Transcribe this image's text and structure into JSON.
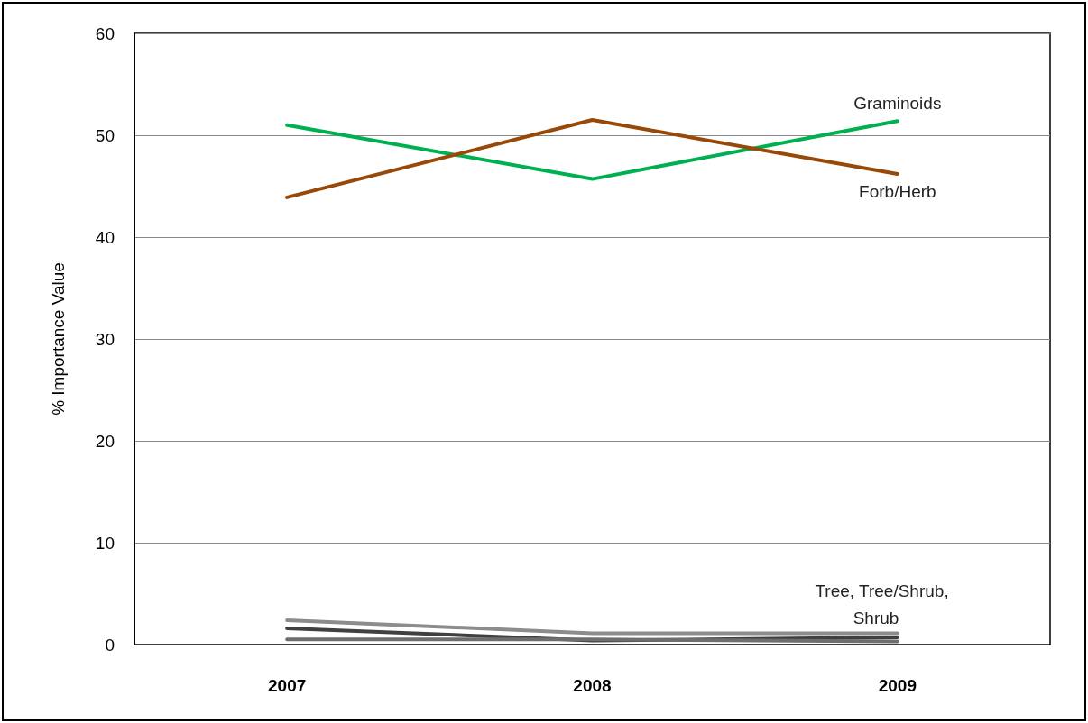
{
  "chart_data": {
    "type": "line",
    "ylabel": "% Importance Value",
    "categories": [
      "2007",
      "2008",
      "2009"
    ],
    "series": [
      {
        "name": "Graminoids",
        "color": "#00b050",
        "values": [
          51.0,
          45.7,
          51.4
        ]
      },
      {
        "name": "Forb/Herb",
        "color": "#984807",
        "values": [
          43.9,
          51.5,
          46.2
        ]
      },
      {
        "color": "#8c8c8c",
        "values": [
          2.4,
          1.1,
          1.1
        ]
      },
      {
        "color": "#404040",
        "values": [
          1.6,
          0.4,
          0.7
        ]
      },
      {
        "color": "#6e6e6e",
        "values": [
          0.5,
          0.5,
          0.3
        ]
      }
    ],
    "annotations": [
      "Tree, Tree/Shrub, Shrub"
    ],
    "ylim": [
      0,
      60
    ],
    "yticks": [
      0,
      10,
      20,
      30,
      40,
      50,
      60
    ],
    "grid": "y",
    "legend": false,
    "marker": "none",
    "line_style": "solid"
  }
}
